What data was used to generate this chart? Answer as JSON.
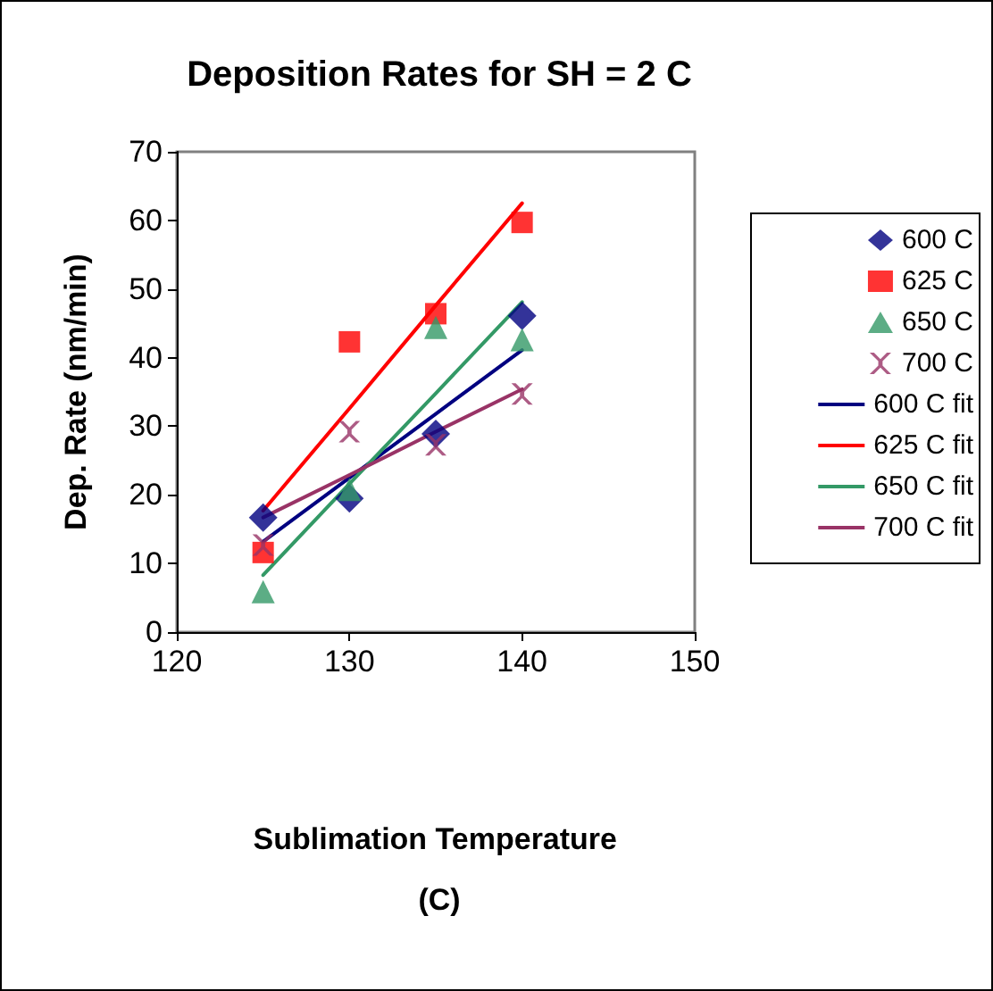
{
  "chart_data": {
    "type": "scatter",
    "title": "Deposition Rates for SH = 2 C",
    "xlabel": "Sublimation Temperature (C)",
    "ylabel": "Dep. Rate (nm/min)",
    "x": [
      125,
      130,
      135,
      140
    ],
    "xlim": [
      120,
      150
    ],
    "xticks": [
      120,
      130,
      140,
      150
    ],
    "ylim": [
      0,
      70
    ],
    "yticks": [
      0,
      10,
      20,
      30,
      40,
      50,
      60,
      70
    ],
    "grid": false,
    "legend": "right",
    "series": [
      {
        "name": "600 C",
        "color": "#000080",
        "marker": "diamond",
        "values": [
          16.7,
          19.5,
          28.9,
          46.1
        ]
      },
      {
        "name": "625 C",
        "color": "#ff0000",
        "marker": "square",
        "values": [
          11.6,
          42.3,
          46.4,
          59.7
        ]
      },
      {
        "name": "650 C",
        "color": "#339966",
        "marker": "triangle",
        "values": [
          5.9,
          20.8,
          44.4,
          42.6
        ]
      },
      {
        "name": "700 C",
        "color": "#993366",
        "marker": "cross",
        "values": [
          12.7,
          29.2,
          27.3,
          34.7
        ]
      },
      {
        "name": "600 C fit",
        "type": "line",
        "color": "#000080",
        "marker": "none",
        "values": [
          13.2,
          22.5,
          31.8,
          41.1
        ]
      },
      {
        "name": "625 C fit",
        "type": "line",
        "color": "#ff0000",
        "marker": "none",
        "values": [
          17.7,
          32.6,
          47.6,
          62.5
        ]
      },
      {
        "name": "650 C fit",
        "type": "line",
        "color": "#339966",
        "marker": "none",
        "values": [
          8.3,
          21.6,
          34.8,
          48.1
        ]
      },
      {
        "name": "700 C fit",
        "type": "line",
        "color": "#993366",
        "marker": "none",
        "values": [
          16.7,
          22.9,
          29.2,
          35.4
        ]
      }
    ]
  }
}
